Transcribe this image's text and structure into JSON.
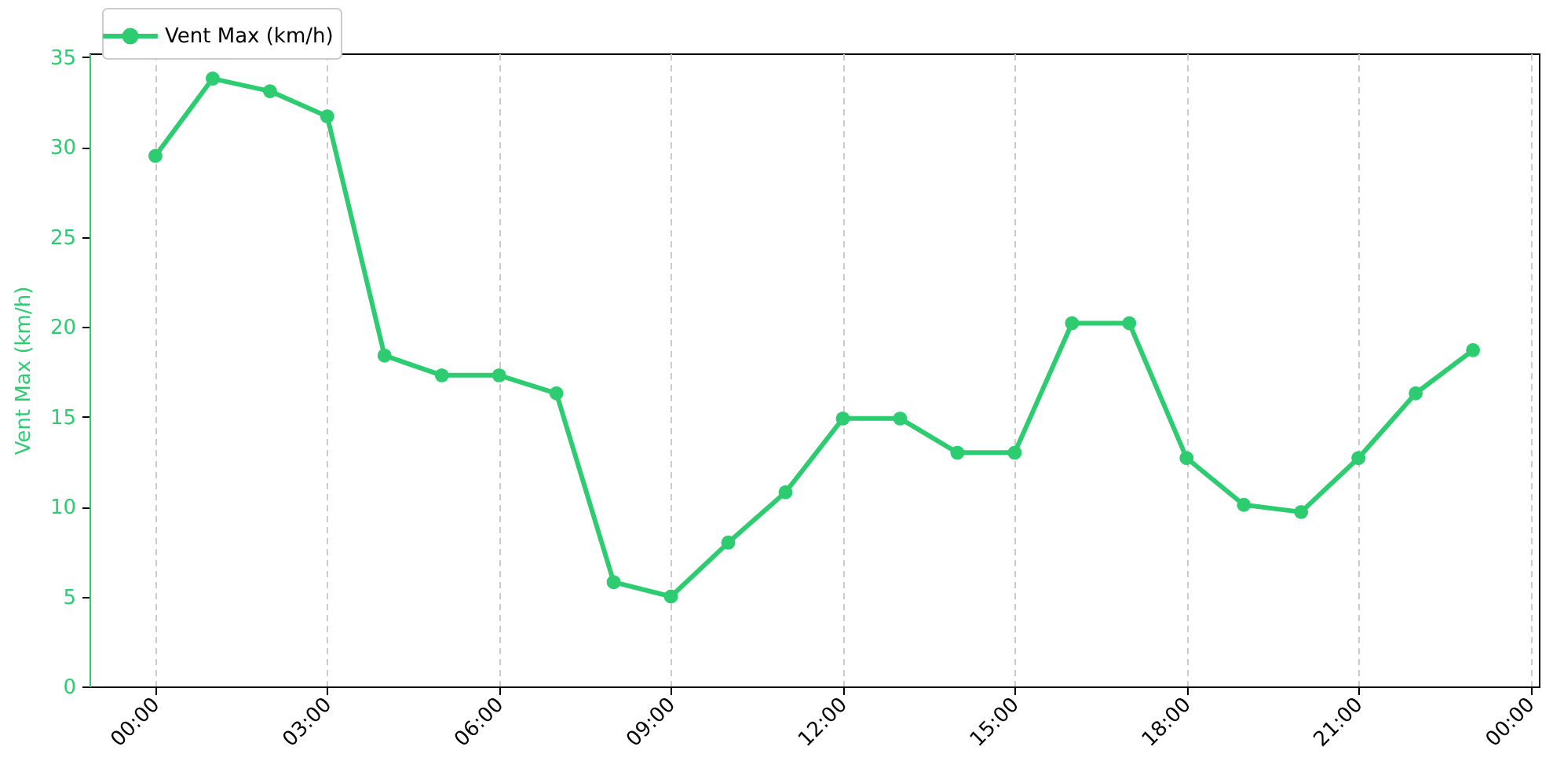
{
  "chart_data": {
    "type": "line",
    "ylabel": "Vent Max (km/h)",
    "x": [
      0,
      1,
      2,
      3,
      4,
      5,
      6,
      7,
      8,
      9,
      10,
      11,
      12,
      13,
      14,
      15,
      16,
      17,
      18,
      19,
      20,
      21,
      22,
      23
    ],
    "series": [
      {
        "name": "Vent Max (km/h)",
        "color": "#2ecc71",
        "values": [
          29.5,
          33.8,
          33.1,
          31.7,
          18.4,
          17.3,
          17.3,
          16.3,
          5.8,
          5.0,
          8.0,
          10.8,
          14.9,
          14.9,
          13.0,
          13.0,
          20.2,
          20.2,
          12.7,
          10.1,
          9.7,
          12.7,
          16.3,
          18.7
        ]
      }
    ],
    "xlim": [
      -1.15,
      24.15
    ],
    "xticks": [
      {
        "value": 0,
        "label": "00:00"
      },
      {
        "value": 3,
        "label": "03:00"
      },
      {
        "value": 6,
        "label": "06:00"
      },
      {
        "value": 9,
        "label": "09:00"
      },
      {
        "value": 12,
        "label": "12:00"
      },
      {
        "value": 15,
        "label": "15:00"
      },
      {
        "value": 18,
        "label": "18:00"
      },
      {
        "value": 21,
        "label": "21:00"
      },
      {
        "value": 24,
        "label": "00:00"
      }
    ],
    "ylim": [
      0,
      35.2
    ],
    "yticks": [
      0,
      5,
      10,
      15,
      20,
      25,
      30,
      35
    ],
    "grid": "x",
    "legend": "top left",
    "marker": "circle",
    "line_style": "solid"
  }
}
